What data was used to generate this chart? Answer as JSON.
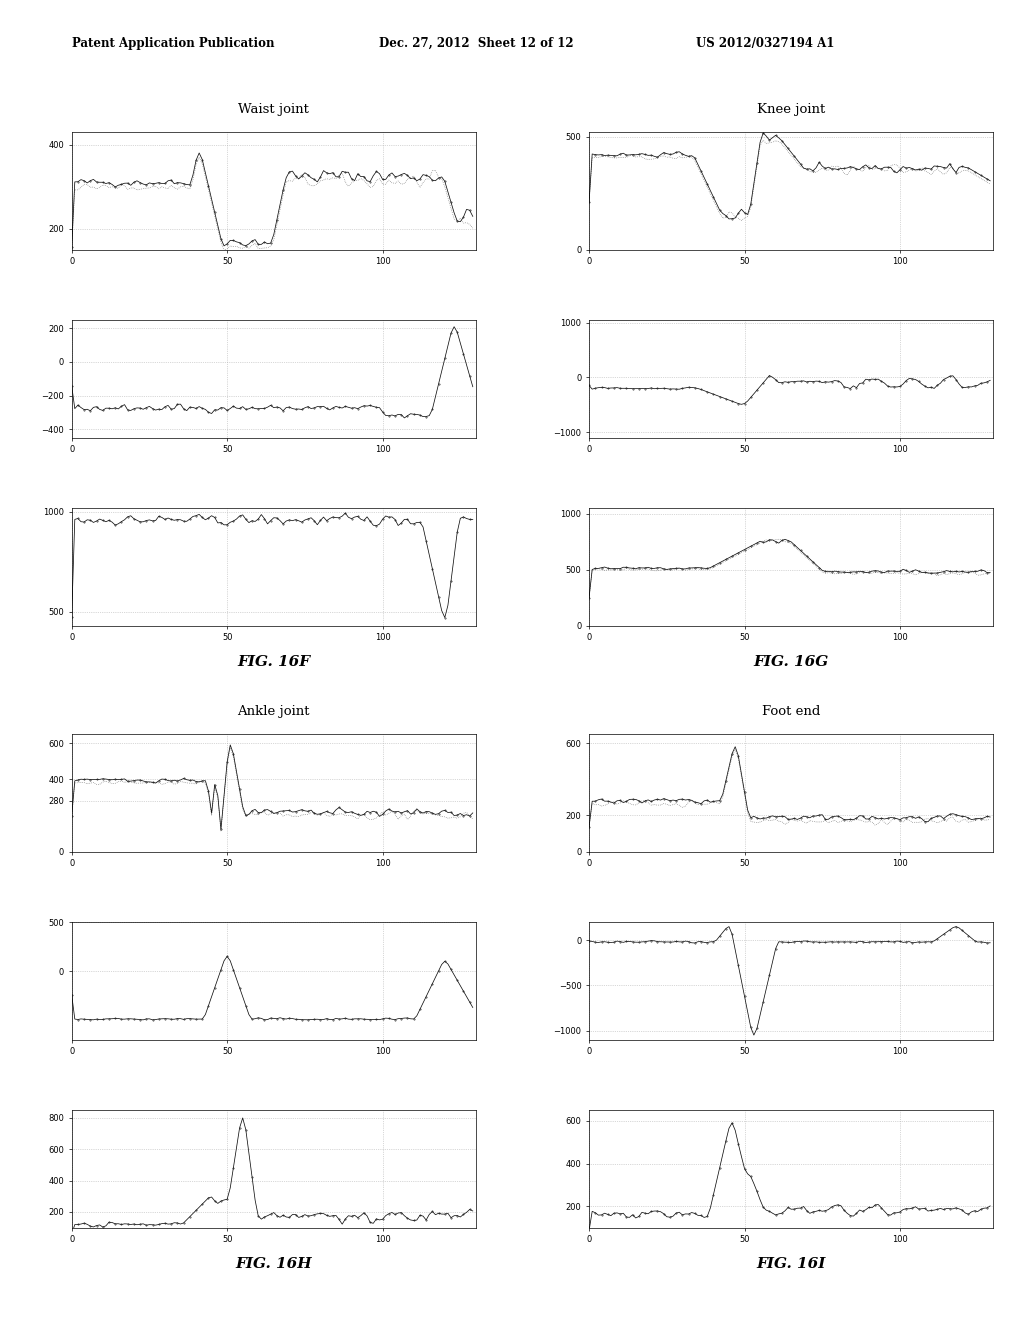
{
  "header_left": "Patent Application Publication",
  "header_mid": "Dec. 27, 2012  Sheet 12 of 12",
  "header_right": "US 2012/0327194 A1",
  "panels": [
    {
      "title": "Waist joint",
      "fig_label": "FIG. 16F",
      "subplots": [
        {
          "ylim": [
            150,
            430
          ],
          "yticks": [
            200,
            400
          ],
          "xlim": [
            0,
            130
          ]
        },
        {
          "ylim": [
            -450,
            250
          ],
          "yticks": [
            -400,
            -200,
            0,
            200
          ],
          "xlim": [
            0,
            130
          ]
        },
        {
          "ylim": [
            430,
            1020
          ],
          "yticks": [
            500,
            1000
          ],
          "xlim": [
            0,
            130
          ]
        }
      ]
    },
    {
      "title": "Knee joint",
      "fig_label": "FIG. 16G",
      "subplots": [
        {
          "ylim": [
            0,
            520
          ],
          "yticks": [
            0,
            500
          ],
          "xlim": [
            0,
            130
          ]
        },
        {
          "ylim": [
            -1100,
            1050
          ],
          "yticks": [
            -1000,
            0,
            1000
          ],
          "xlim": [
            0,
            130
          ]
        },
        {
          "ylim": [
            0,
            1050
          ],
          "yticks": [
            0,
            500,
            1000
          ],
          "xlim": [
            0,
            130
          ]
        }
      ]
    },
    {
      "title": "Ankle joint",
      "fig_label": "FIG. 16H",
      "subplots": [
        {
          "ylim": [
            0,
            650
          ],
          "yticks": [
            0,
            280,
            400,
            600
          ],
          "xlim": [
            0,
            130
          ]
        },
        {
          "ylim": [
            -700,
            200
          ],
          "yticks": [
            0,
            500
          ],
          "xlim": [
            0,
            130
          ]
        },
        {
          "ylim": [
            100,
            850
          ],
          "yticks": [
            200,
            400,
            600,
            800
          ],
          "xlim": [
            0,
            130
          ]
        }
      ]
    },
    {
      "title": "Foot end",
      "fig_label": "FIG. 16I",
      "subplots": [
        {
          "ylim": [
            0,
            650
          ],
          "yticks": [
            0,
            200,
            600
          ],
          "xlim": [
            0,
            130
          ]
        },
        {
          "ylim": [
            -1100,
            200
          ],
          "yticks": [
            -1000,
            -500,
            0
          ],
          "xlim": [
            0,
            130
          ]
        },
        {
          "ylim": [
            100,
            650
          ],
          "yticks": [
            200,
            400,
            600
          ],
          "xlim": [
            0,
            130
          ]
        }
      ]
    }
  ],
  "bg_color": "#ffffff",
  "line_color": "#111111",
  "dot_color": "#555555",
  "grid_color": "#aaaaaa",
  "xticks": [
    0,
    50,
    100
  ],
  "seed": 42
}
